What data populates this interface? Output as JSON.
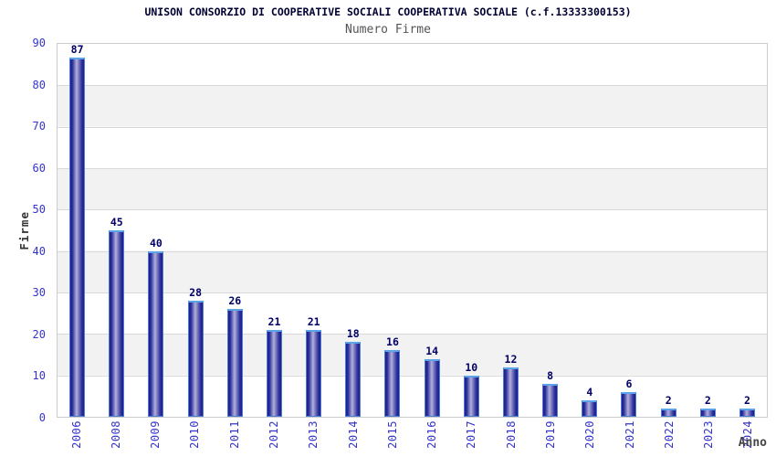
{
  "colors": {
    "axis_label": "#3333cc",
    "value_label": "#000066",
    "title": "#000033",
    "subtitle": "#555555",
    "bar_dark": "#1b1b8c",
    "bar_light": "#b2b2dc",
    "bar_cap": "#5ba4ea",
    "bar_outline": "#4a7fd0",
    "band_fill": "#f2f2f2",
    "gridline": "#d9d9d9",
    "plot_border": "#cccccc"
  },
  "chart_data": {
    "type": "bar",
    "title": "UNISON CONSORZIO DI COOPERATIVE SOCIALI COOPERATIVA SOCIALE (c.f.13333300153)",
    "subtitle": "Numero Firme",
    "xlabel": "Anno",
    "ylabel": "Firme",
    "categories": [
      "2006",
      "2008",
      "2009",
      "2010",
      "2011",
      "2012",
      "2013",
      "2014",
      "2015",
      "2016",
      "2017",
      "2018",
      "2019",
      "2020",
      "2021",
      "2022",
      "2023",
      "2024"
    ],
    "values": [
      87,
      45,
      40,
      28,
      26,
      21,
      21,
      18,
      16,
      14,
      10,
      12,
      8,
      4,
      6,
      2,
      2,
      2
    ],
    "ylim": [
      0,
      90
    ],
    "yticks": [
      0,
      10,
      20,
      30,
      40,
      50,
      60,
      70,
      80,
      90
    ],
    "grid": "horizontal-bands",
    "legend": "none",
    "bar_value_labels_shown": true,
    "x_tick_rotation_degrees": 90
  }
}
